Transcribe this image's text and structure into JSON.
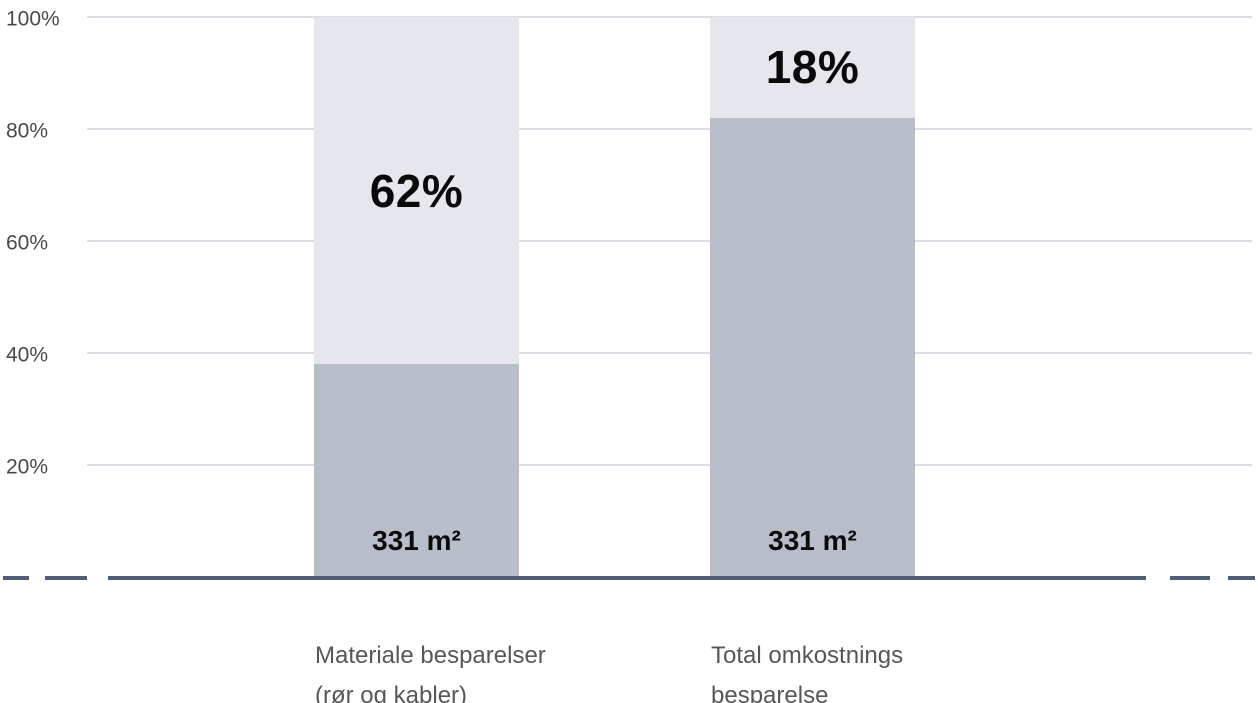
{
  "chart_data": {
    "type": "bar",
    "subtype": "stacked-vertical",
    "title": "",
    "categories": [
      {
        "label_lines": [
          "Materiale besparelser",
          "(rør og kabler)"
        ]
      },
      {
        "label_lines": [
          "Total omkostnings",
          "besparelse"
        ]
      }
    ],
    "series": [
      {
        "name": "base-segment",
        "values": [
          38,
          82
        ],
        "labels": [
          "331 m²",
          "331 m²"
        ],
        "color": "#b8bdca"
      },
      {
        "name": "savings-segment",
        "values": [
          62,
          18
        ],
        "labels": [
          "62%",
          "18%"
        ],
        "color": "#e6e7ec"
      }
    ],
    "y_axis": {
      "ticks": [
        100,
        80,
        60,
        40,
        20
      ],
      "tick_labels": [
        "100%",
        "80%",
        "60%",
        "40%",
        "20%"
      ],
      "range": [
        0,
        100
      ],
      "grid": true
    },
    "x_axis": {
      "baseline_style": "solid-with-dashed-ends"
    },
    "legend": "none",
    "colors": {
      "background": "#ffffff",
      "grid_line": "#d9dde6",
      "baseline": "#4f5d77",
      "tick_text": "#4a4a4a",
      "category_text": "#575757",
      "pct_label_text": "#0a0a0a",
      "area_label_text": "#0a0a0a"
    }
  }
}
